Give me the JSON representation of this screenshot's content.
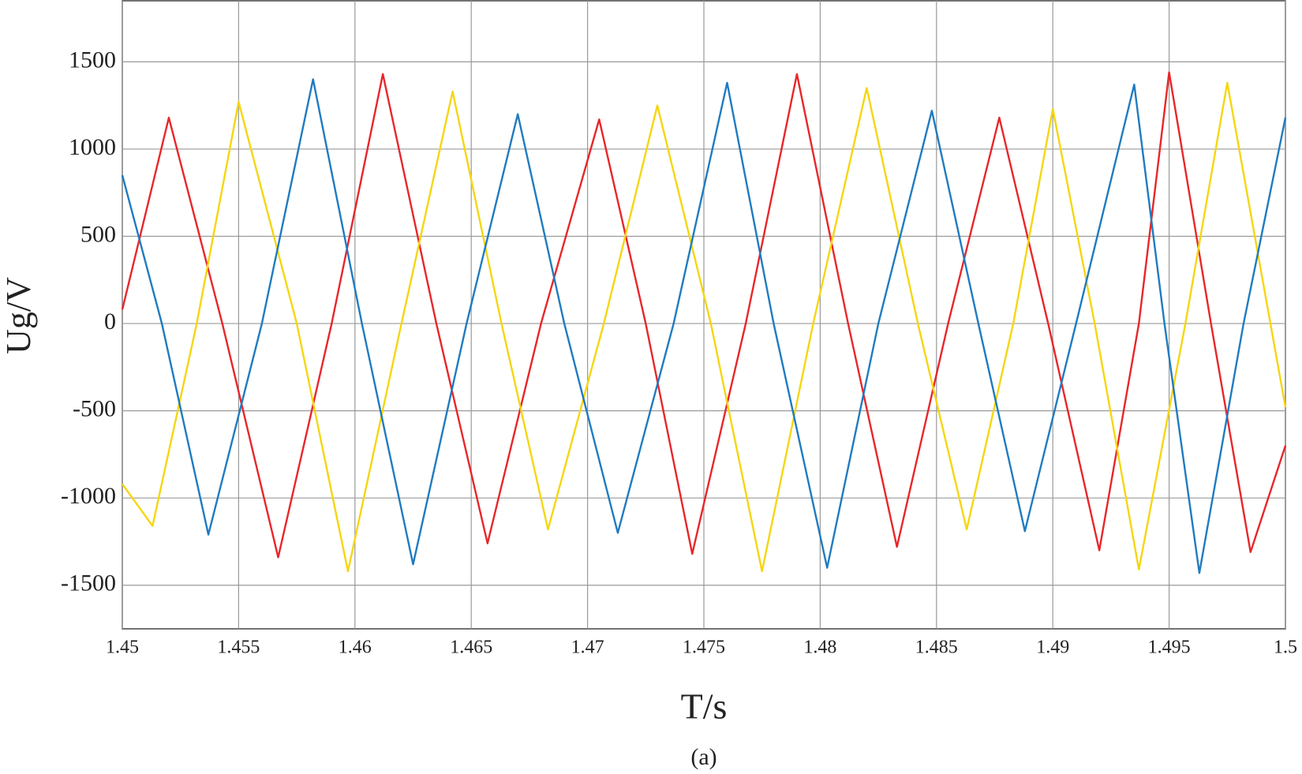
{
  "chart_data": {
    "type": "line",
    "xlabel": "T/s",
    "ylabel": "Ug/V",
    "caption": "(a)",
    "xlim": [
      1.45,
      1.5
    ],
    "ylim": [
      -1750,
      1850
    ],
    "xticks": [
      1.45,
      1.455,
      1.46,
      1.465,
      1.47,
      1.475,
      1.48,
      1.485,
      1.49,
      1.495,
      1.5
    ],
    "yticks": [
      -1500,
      -1000,
      -500,
      0,
      500,
      1000,
      1500
    ],
    "grid": true,
    "series": [
      {
        "color": "#e8262a",
        "x": [
          1.45,
          1.452,
          1.4543,
          1.4567,
          1.459,
          1.4612,
          1.4635,
          1.4657,
          1.468,
          1.4705,
          1.4725,
          1.4745,
          1.4768,
          1.479,
          1.4812,
          1.4833,
          1.4855,
          1.4877,
          1.4898,
          1.492,
          1.4937,
          1.495,
          1.4968,
          1.4985,
          1.5
        ],
        "values": [
          80,
          1180,
          0,
          -1340,
          0,
          1430,
          0,
          -1260,
          0,
          1170,
          0,
          -1320,
          0,
          1430,
          0,
          -1280,
          0,
          1180,
          0,
          -1300,
          0,
          1440,
          0,
          -1310,
          -700
        ]
      },
      {
        "color": "#f5d60f",
        "x": [
          1.45,
          1.4513,
          1.4532,
          1.455,
          1.4575,
          1.4597,
          1.462,
          1.4642,
          1.4663,
          1.4683,
          1.4707,
          1.473,
          1.4753,
          1.4775,
          1.4797,
          1.482,
          1.4842,
          1.4863,
          1.4883,
          1.49,
          1.4918,
          1.4937,
          1.4957,
          1.4975,
          1.5
        ],
        "values": [
          -920,
          -1160,
          0,
          1270,
          0,
          -1420,
          0,
          1330,
          0,
          -1180,
          0,
          1250,
          0,
          -1420,
          0,
          1350,
          0,
          -1180,
          0,
          1230,
          0,
          -1410,
          0,
          1380,
          -480
        ]
      },
      {
        "color": "#1f7bc1",
        "x": [
          1.45,
          1.4517,
          1.4537,
          1.456,
          1.4582,
          1.4603,
          1.4625,
          1.4648,
          1.467,
          1.469,
          1.4713,
          1.4737,
          1.476,
          1.478,
          1.4803,
          1.4825,
          1.4848,
          1.4868,
          1.4888,
          1.491,
          1.4935,
          1.4948,
          1.4963,
          1.4982,
          1.5
        ],
        "values": [
          850,
          0,
          -1210,
          0,
          1400,
          0,
          -1380,
          0,
          1200,
          0,
          -1200,
          0,
          1380,
          0,
          -1400,
          0,
          1220,
          0,
          -1190,
          0,
          1370,
          0,
          -1430,
          0,
          1180
        ]
      }
    ]
  }
}
